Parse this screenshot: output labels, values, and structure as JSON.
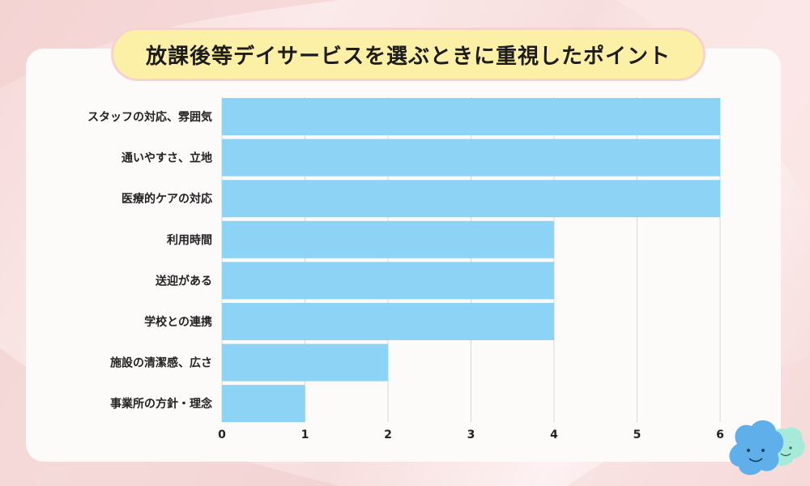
{
  "title": "放課後等デイサービスを選ぶときに重視したポイント",
  "colors": {
    "bar": "#8dd3f6",
    "grid": "#d7d7d7",
    "title_bg": "#fcefa6",
    "title_border": "#f6d3cf",
    "mascot_blue": "#5fb0ea",
    "mascot_mint": "#a8ead9"
  },
  "chart_data": {
    "type": "bar",
    "orientation": "horizontal",
    "title": "放課後等デイサービスを選ぶときに重視したポイント",
    "categories": [
      "スタッフの対応、雰囲気",
      "通いやすさ、立地",
      "医療的ケアの対応",
      "利用時間",
      "送迎がある",
      "学校との連携",
      "施設の清潔感、広さ",
      "事業所の方針・理念"
    ],
    "values": [
      6,
      6,
      6,
      4,
      4,
      4,
      2,
      1
    ],
    "xlim": [
      0,
      6
    ],
    "xticks": [
      "0",
      "1",
      "2",
      "3",
      "4",
      "5",
      "6"
    ],
    "grid": true,
    "xlabel": "",
    "ylabel": ""
  }
}
